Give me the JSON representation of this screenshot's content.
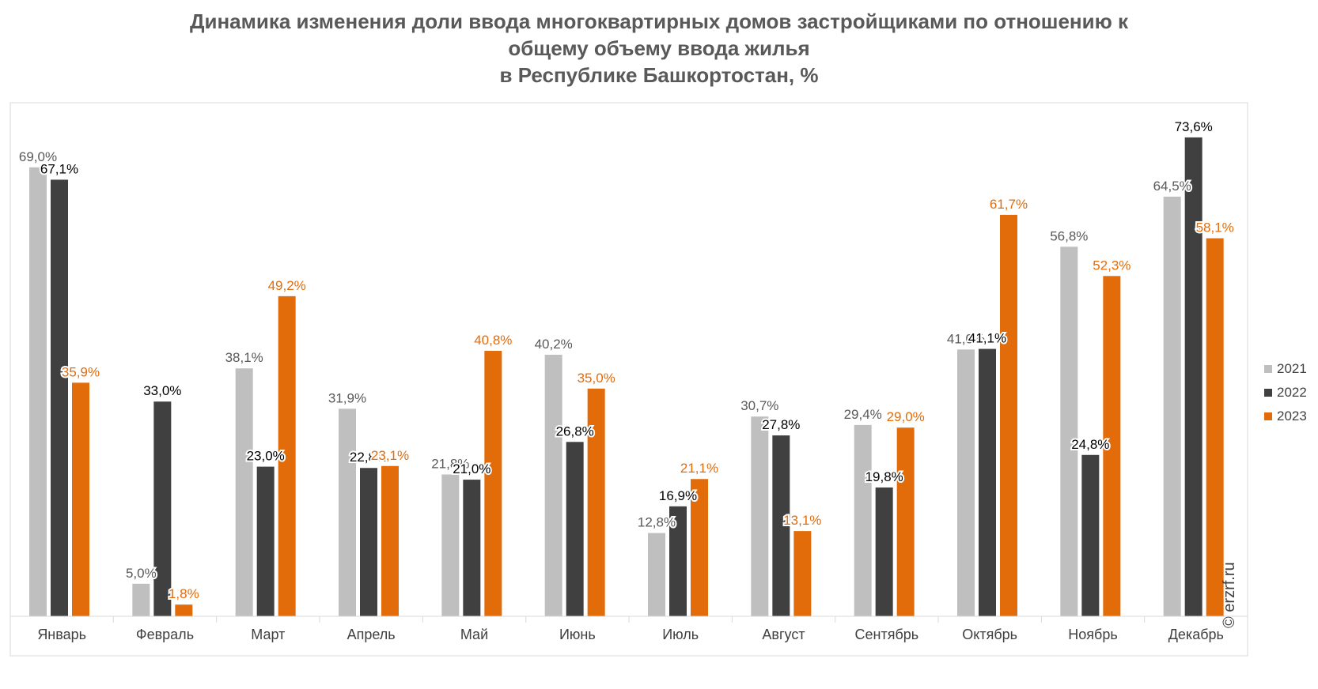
{
  "title": {
    "line1": "Динамика изменения доли ввода многоквартирных домов застройщиками по отношению к",
    "line2": "общему объему ввода жилья",
    "line3": "в Республике Башкортостан, %"
  },
  "watermark": "© erzrf.ru",
  "colors": {
    "s2021": "#bfbfbf",
    "s2022": "#404040",
    "s2023": "#e36c0a"
  },
  "chart_data": {
    "type": "bar",
    "categories": [
      "Январь",
      "Февраль",
      "Март",
      "Апрель",
      "Май",
      "Июнь",
      "Июль",
      "Август",
      "Сентябрь",
      "Октябрь",
      "Ноябрь",
      "Декабрь"
    ],
    "series": [
      {
        "name": "2021",
        "values": [
          69.0,
          5.0,
          38.1,
          31.9,
          21.8,
          40.2,
          12.8,
          30.7,
          29.4,
          41.0,
          56.8,
          64.5
        ]
      },
      {
        "name": "2022",
        "values": [
          67.1,
          33.0,
          23.0,
          22.8,
          21.0,
          26.8,
          16.9,
          27.8,
          19.8,
          41.1,
          24.8,
          73.6
        ]
      },
      {
        "name": "2023",
        "values": [
          35.9,
          1.8,
          49.2,
          23.1,
          40.8,
          35.0,
          21.1,
          13.1,
          29.0,
          61.7,
          52.3,
          58.1
        ]
      }
    ],
    "value_format": "0,0%",
    "ylim": [
      0,
      80
    ],
    "grid": false,
    "legend_position": "right"
  }
}
